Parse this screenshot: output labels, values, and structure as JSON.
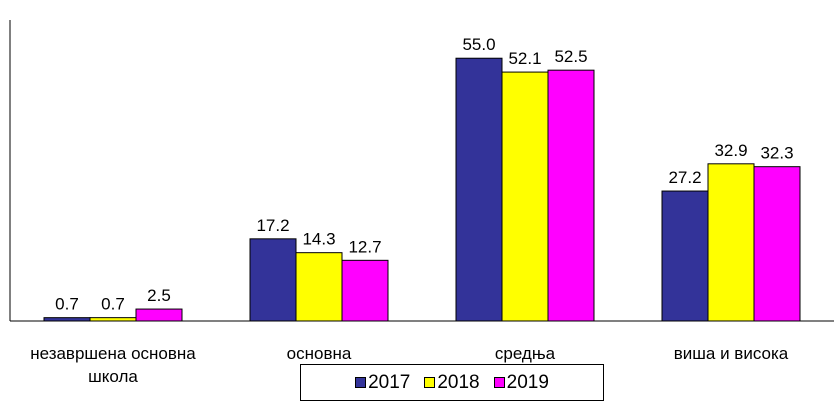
{
  "chart_data": {
    "type": "bar",
    "categories": [
      "незавршена основна школа",
      "основна",
      "средња",
      "виша и висока"
    ],
    "series": [
      {
        "name": "2017",
        "color": "#333399",
        "values": [
          0.7,
          17.2,
          55.0,
          27.2
        ],
        "value_labels": [
          "0.7",
          "17.2",
          "55.0",
          "27.2"
        ]
      },
      {
        "name": "2018",
        "color": "#ffff00",
        "values": [
          0.7,
          14.3,
          52.1,
          32.9
        ],
        "value_labels": [
          "0.7",
          "14.3",
          "52.1",
          "32.9"
        ]
      },
      {
        "name": "2019",
        "color": "#ff00ff",
        "values": [
          2.5,
          12.7,
          52.5,
          32.3
        ],
        "value_labels": [
          "2.5",
          "12.7",
          "52.5",
          "32.3"
        ]
      }
    ],
    "ylim": [
      0,
      63
    ],
    "legend": "bottom"
  }
}
